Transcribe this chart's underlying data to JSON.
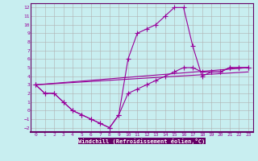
{
  "xlabel": "Windchill (Refroidissement éolien,°C)",
  "bg_color": "#c8eef0",
  "grid_color": "#b0b0b0",
  "line_color": "#990099",
  "axis_bottom_color": "#660066",
  "xlim": [
    -0.5,
    23.5
  ],
  "ylim": [
    -2.5,
    12.5
  ],
  "xticks": [
    0,
    1,
    2,
    3,
    4,
    5,
    6,
    7,
    8,
    9,
    10,
    11,
    12,
    13,
    14,
    15,
    16,
    17,
    18,
    19,
    20,
    21,
    22,
    23
  ],
  "yticks": [
    -2,
    -1,
    0,
    1,
    2,
    3,
    4,
    5,
    6,
    7,
    8,
    9,
    10,
    11,
    12
  ],
  "line1_x": [
    0,
    1,
    2,
    3,
    4,
    5,
    6,
    7,
    8,
    9,
    10,
    11,
    12,
    13,
    14,
    15,
    16,
    17,
    18,
    19,
    20,
    21,
    22,
    23
  ],
  "line1_y": [
    3,
    2,
    2,
    1,
    0,
    -0.5,
    -1,
    -1.5,
    -2,
    -0.5,
    2,
    2.5,
    3,
    3.5,
    4,
    4.5,
    5,
    5,
    4.5,
    4.5,
    4.5,
    5,
    5,
    5
  ],
  "line2_x": [
    0,
    1,
    2,
    3,
    4,
    5,
    6,
    7,
    8,
    9,
    10,
    11,
    12,
    13,
    14,
    15,
    16,
    17,
    18,
    19,
    20,
    21,
    22,
    23
  ],
  "line2_y": [
    3,
    2,
    2,
    1,
    0,
    -0.5,
    -1,
    -1.5,
    -2,
    -0.5,
    6,
    9,
    9.5,
    10,
    11,
    12,
    12,
    7.5,
    4,
    4.5,
    4.5,
    5,
    5,
    5
  ],
  "line3_x": [
    0,
    23
  ],
  "line3_y": [
    3,
    5
  ],
  "line4_x": [
    0,
    23
  ],
  "line4_y": [
    3,
    4.5
  ]
}
